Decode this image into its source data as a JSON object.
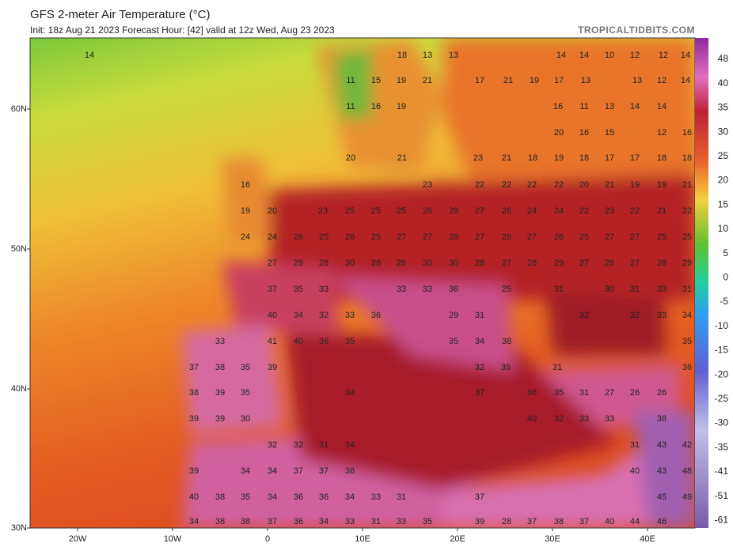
{
  "header": {
    "title": "GFS 2-meter Air Temperature (°C)",
    "subtitle": "Init: 18z Aug 21 2023   Forecast Hour: [42]   valid at 12z Wed, Aug 23 2023",
    "brand": "TROPICALTIDBITS.COM"
  },
  "lat_labels": [
    "60N",
    "50N",
    "40N",
    "30N"
  ],
  "lon_labels": [
    "20W",
    "10W",
    "0",
    "10E",
    "20E",
    "30E",
    "40E"
  ],
  "colorbar_ticks": [
    48,
    40,
    35,
    30,
    25,
    20,
    15,
    10,
    5,
    0,
    -5,
    -10,
    -15,
    -20,
    -25,
    -30,
    -35,
    -41,
    -51,
    -61
  ],
  "temperature_rows": [
    [
      14,
      18,
      13,
      13,
      14,
      14,
      10,
      12,
      12,
      14
    ],
    [
      11,
      15,
      19,
      21,
      17,
      21,
      19,
      17,
      13,
      13,
      12,
      14
    ],
    [
      11,
      16,
      19,
      16,
      11,
      13,
      14,
      14
    ],
    [
      20,
      16,
      15,
      12,
      16
    ],
    [
      20,
      21,
      23,
      21,
      18,
      19,
      18,
      17,
      17,
      18,
      18
    ],
    [
      16,
      23,
      22,
      22,
      22,
      22,
      20,
      21,
      19,
      19,
      21
    ],
    [
      19,
      20,
      23,
      25,
      25,
      25,
      26,
      28,
      27,
      26,
      24,
      24,
      22,
      23,
      22,
      21,
      22
    ],
    [
      24,
      24,
      26,
      25,
      26,
      25,
      27,
      27,
      28,
      27,
      26,
      27,
      26,
      25,
      27,
      27,
      25,
      25
    ],
    [
      27,
      29,
      28,
      30,
      28,
      28,
      30,
      30,
      28,
      27,
      28,
      29,
      27,
      28,
      27,
      28,
      29
    ],
    [
      37,
      35,
      33,
      33,
      33,
      36,
      25,
      31,
      30,
      31,
      33,
      31
    ],
    [
      40,
      34,
      32,
      33,
      36,
      29,
      31,
      32,
      32,
      33,
      34
    ],
    [
      33,
      41,
      40,
      36,
      35,
      35,
      34,
      38,
      35
    ],
    [
      37,
      38,
      35,
      39,
      32,
      35,
      31,
      36
    ],
    [
      38,
      39,
      35,
      34,
      37,
      36,
      35,
      31,
      27,
      26,
      26
    ],
    [
      39,
      39,
      30,
      40,
      32,
      33,
      33,
      38
    ],
    [
      32,
      32,
      31,
      34,
      31,
      43,
      42
    ],
    [
      39,
      34,
      34,
      37,
      37,
      36,
      40,
      43,
      48
    ],
    [
      40,
      38,
      35,
      34,
      36,
      36,
      34,
      33,
      31,
      37,
      45,
      49
    ],
    [
      34,
      38,
      38,
      37,
      36,
      34,
      33,
      31,
      33,
      35,
      39,
      28,
      37,
      38,
      37,
      40,
      44,
      46
    ]
  ]
}
